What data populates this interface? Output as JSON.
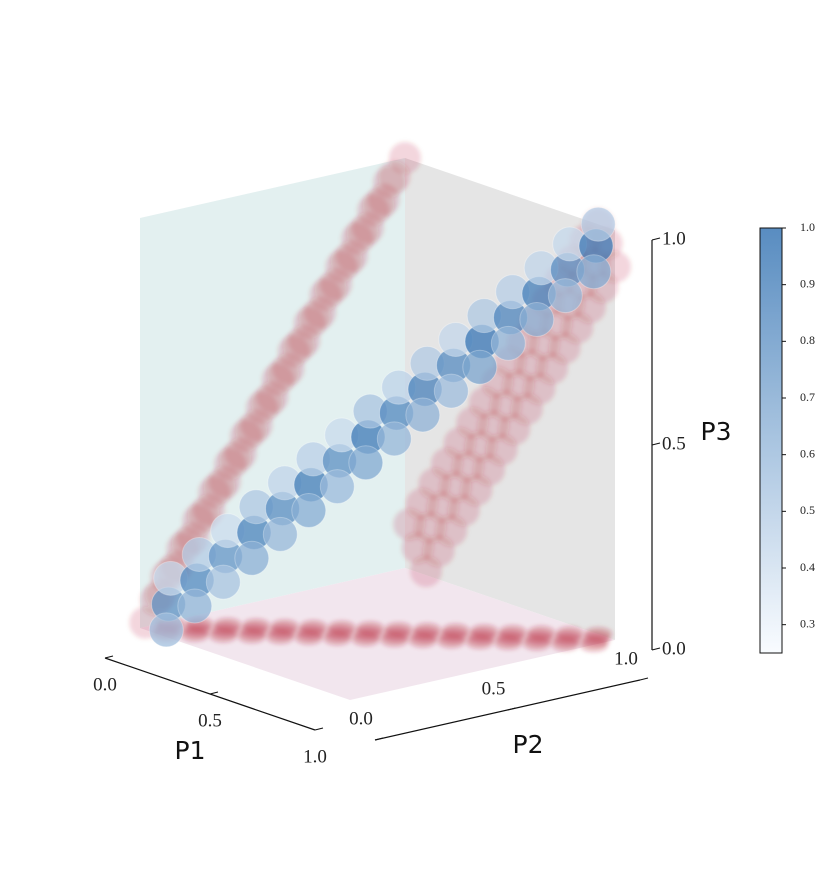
{
  "chart_data": {
    "type": "scatter3d",
    "xlabel": "P1",
    "ylabel": "P2",
    "zlabel": "P3",
    "x": [
      0.06,
      0.1,
      0.02,
      0.12,
      0.16,
      0.08,
      0.18,
      0.22,
      0.14,
      0.24,
      0.28,
      0.2,
      0.3,
      0.34,
      0.26,
      0.36,
      0.4,
      0.32,
      0.42,
      0.46,
      0.38,
      0.48,
      0.52,
      0.44,
      0.54,
      0.58,
      0.5,
      0.6,
      0.64,
      0.56,
      0.66,
      0.7,
      0.62,
      0.72,
      0.76,
      0.68,
      0.78,
      0.82,
      0.74,
      0.84,
      0.88,
      0.8,
      0.9,
      0.94,
      0.86,
      0.96,
      1.0,
      0.92
    ],
    "y": [
      0.06,
      0.02,
      0.1,
      0.12,
      0.08,
      0.16,
      0.18,
      0.14,
      0.22,
      0.24,
      0.2,
      0.28,
      0.3,
      0.26,
      0.34,
      0.36,
      0.32,
      0.4,
      0.42,
      0.38,
      0.46,
      0.48,
      0.44,
      0.52,
      0.54,
      0.5,
      0.58,
      0.6,
      0.56,
      0.64,
      0.66,
      0.62,
      0.7,
      0.72,
      0.68,
      0.76,
      0.78,
      0.74,
      0.82,
      0.84,
      0.8,
      0.88,
      0.9,
      0.86,
      0.94,
      0.96,
      0.92,
      1.0
    ],
    "z": [
      0.06,
      0.01,
      0.11,
      0.12,
      0.07,
      0.17,
      0.18,
      0.13,
      0.23,
      0.24,
      0.19,
      0.29,
      0.3,
      0.25,
      0.35,
      0.36,
      0.31,
      0.41,
      0.42,
      0.37,
      0.47,
      0.48,
      0.43,
      0.53,
      0.54,
      0.49,
      0.59,
      0.6,
      0.55,
      0.65,
      0.66,
      0.61,
      0.71,
      0.72,
      0.67,
      0.77,
      0.78,
      0.73,
      0.83,
      0.84,
      0.79,
      0.89,
      0.9,
      0.85,
      0.95,
      0.96,
      0.91,
      1.0
    ],
    "values": [
      0.78,
      0.55,
      0.42,
      0.82,
      0.6,
      0.48,
      0.76,
      0.52,
      0.4,
      0.85,
      0.62,
      0.5,
      0.8,
      0.58,
      0.44,
      0.88,
      0.64,
      0.46,
      0.79,
      0.57,
      0.41,
      0.9,
      0.66,
      0.52,
      0.83,
      0.59,
      0.45,
      0.86,
      0.61,
      0.49,
      0.81,
      0.56,
      0.43,
      0.92,
      0.68,
      0.5,
      0.84,
      0.6,
      0.47,
      0.87,
      0.63,
      0.44,
      0.8,
      0.58,
      0.42,
      0.9,
      0.65,
      0.48
    ],
    "xlim": [
      0,
      1
    ],
    "ylim": [
      0,
      1
    ],
    "zlim": [
      0,
      1
    ],
    "xticks": [
      {
        "value": 0,
        "label": "0.0"
      },
      {
        "value": 0.5,
        "label": "0.5"
      },
      {
        "value": 1,
        "label": "1.0"
      }
    ],
    "yticks": [
      {
        "value": 0,
        "label": "0.0"
      },
      {
        "value": 0.5,
        "label": "0.5"
      },
      {
        "value": 1,
        "label": "1.0"
      }
    ],
    "zticks": [
      {
        "value": 0,
        "label": "0.0"
      },
      {
        "value": 0.5,
        "label": "0.5"
      },
      {
        "value": 1,
        "label": "1.0"
      }
    ],
    "colormap": [
      "#f7fbff",
      "#2166ac"
    ],
    "projection_color": "#b2182b",
    "colorbar": {
      "clim": [
        0.25,
        1.0
      ],
      "ticks": [
        {
          "value": 0.3,
          "label": "0.3"
        },
        {
          "value": 0.4,
          "label": "0.4"
        },
        {
          "value": 0.5,
          "label": "0.5"
        },
        {
          "value": 0.6,
          "label": "0.6"
        },
        {
          "value": 0.7,
          "label": "0.7"
        },
        {
          "value": 0.8,
          "label": "0.8"
        },
        {
          "value": 0.9,
          "label": "0.9"
        },
        {
          "value": 1.0,
          "label": "1.0"
        }
      ]
    }
  }
}
